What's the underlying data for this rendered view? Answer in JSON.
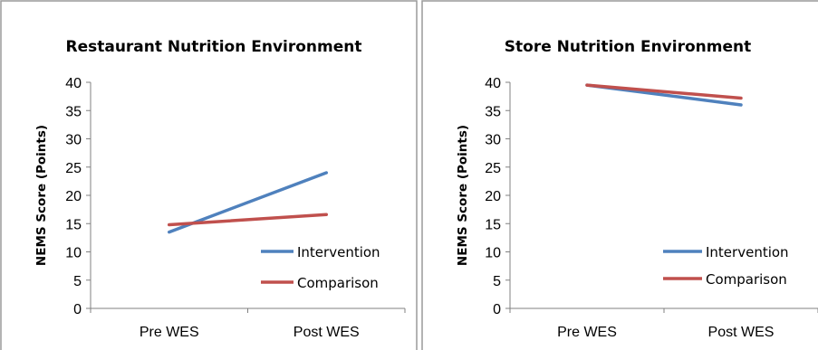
{
  "chart_data": [
    {
      "type": "line",
      "title": "Restaurant Nutrition Environment",
      "ylabel": "NEMS Score (Points)",
      "xlabel": "",
      "categories": [
        "Pre WES",
        "Post WES"
      ],
      "ylim": [
        0,
        40
      ],
      "yticks": [
        0,
        5,
        10,
        15,
        20,
        25,
        30,
        35,
        40
      ],
      "grid": false,
      "legend_position": "bottom-right",
      "series": [
        {
          "name": "Intervention",
          "values": [
            13.5,
            24.0
          ],
          "color": "#4f81bd"
        },
        {
          "name": "Comparison",
          "values": [
            14.8,
            16.6
          ],
          "color": "#c0504d"
        }
      ]
    },
    {
      "type": "line",
      "title": "Store Nutrition Environment",
      "ylabel": "NEMS Score (Points)",
      "xlabel": "",
      "categories": [
        "Pre WES",
        "Post WES"
      ],
      "ylim": [
        0,
        40
      ],
      "yticks": [
        0,
        5,
        10,
        15,
        20,
        25,
        30,
        35,
        40
      ],
      "grid": false,
      "legend_position": "bottom-right",
      "series": [
        {
          "name": "Intervention",
          "values": [
            39.5,
            36.0
          ],
          "color": "#4f81bd"
        },
        {
          "name": "Comparison",
          "values": [
            39.5,
            37.2
          ],
          "color": "#c0504d"
        }
      ]
    }
  ]
}
